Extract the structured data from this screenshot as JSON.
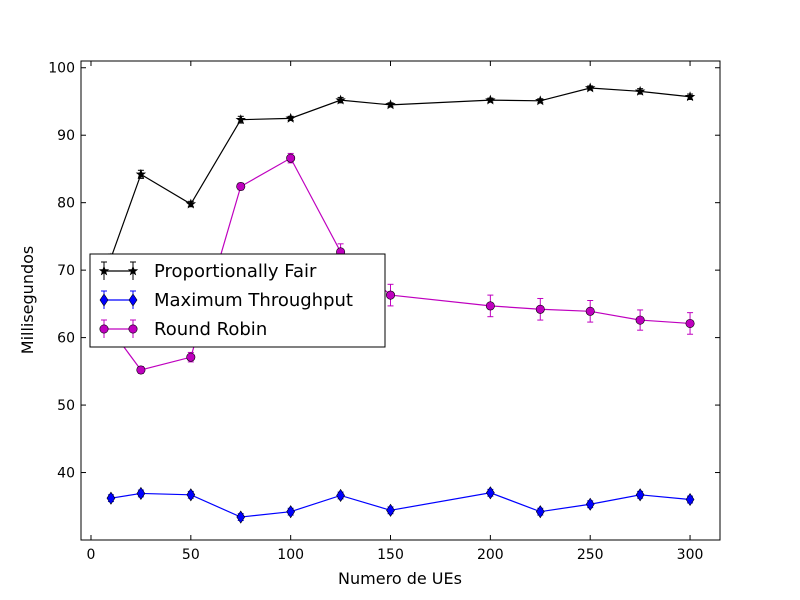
{
  "chart_data": {
    "type": "line",
    "title": "",
    "xlabel": "Numero de UEs",
    "ylabel": "Millisegundos",
    "xlim": [
      -5,
      315
    ],
    "ylim": [
      30,
      101
    ],
    "xticks": [
      0,
      50,
      100,
      150,
      200,
      250,
      300
    ],
    "yticks": [
      40,
      50,
      60,
      70,
      80,
      90,
      100
    ],
    "grid": false,
    "legend_position": "center-left",
    "series": [
      {
        "name": "Proportionally Fair",
        "color": "#000000",
        "marker": "star",
        "x": [
          10,
          25,
          50,
          75,
          100,
          125,
          150,
          200,
          225,
          250,
          275,
          300
        ],
        "y": [
          71.8,
          84.2,
          79.8,
          92.3,
          92.5,
          95.2,
          94.5,
          95.2,
          95.1,
          97.0,
          96.5,
          95.7
        ],
        "err": [
          0.6,
          0.6,
          0.4,
          0.5,
          0.3,
          0.4,
          0.3,
          0.3,
          0.3,
          0.3,
          0.4,
          0.4
        ]
      },
      {
        "name": "Maximum Throughput",
        "color": "#0000ff",
        "marker": "diamond",
        "x": [
          10,
          25,
          50,
          75,
          100,
          125,
          150,
          200,
          225,
          250,
          275,
          300
        ],
        "y": [
          36.2,
          36.9,
          36.7,
          33.4,
          34.2,
          36.6,
          34.4,
          37.0,
          34.2,
          35.3,
          36.7,
          36.0
        ],
        "err": [
          0.5,
          0.5,
          0.5,
          0.5,
          0.5,
          0.5,
          0.5,
          0.5,
          0.5,
          0.5,
          0.5,
          0.5
        ]
      },
      {
        "name": "Round Robin",
        "color": "#bf00bf",
        "marker": "circle",
        "x": [
          10,
          25,
          50,
          75,
          100,
          125,
          150,
          200,
          225,
          250,
          275,
          300
        ],
        "y": [
          61.2,
          55.2,
          57.1,
          82.4,
          86.6,
          72.7,
          66.3,
          64.7,
          64.2,
          63.9,
          62.6,
          62.1
        ],
        "err": [
          1.5,
          0.5,
          0.7,
          0.5,
          0.7,
          1.2,
          1.6,
          1.6,
          1.6,
          1.6,
          1.5,
          1.6
        ]
      }
    ]
  }
}
